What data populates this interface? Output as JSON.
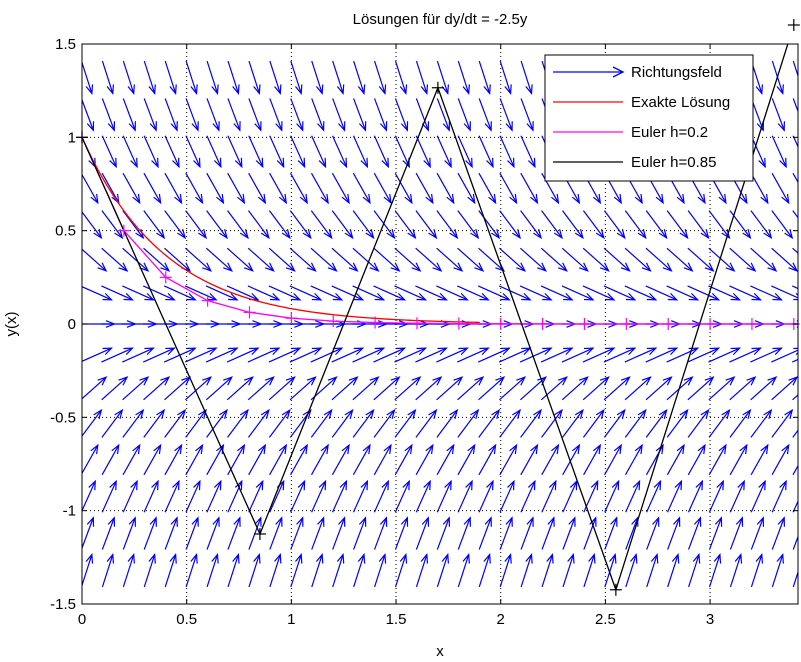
{
  "chart_data": {
    "type": "line",
    "title": "Lösungen für dy/dt = -2.5y",
    "xlabel": "x",
    "ylabel": "y(x)",
    "xlim": [
      0,
      3.42
    ],
    "ylim": [
      -1.5,
      1.5
    ],
    "grid": true,
    "grid_style": "dotted",
    "legend_position": "top-right",
    "x_ticks": [
      0,
      0.5,
      1,
      1.5,
      2,
      2.5,
      3
    ],
    "x_tick_labels": [
      "0",
      "0.5",
      "1",
      "1.5",
      "2",
      "2.5",
      "3"
    ],
    "y_ticks": [
      1.5,
      1,
      0.5,
      0,
      -0.5,
      -1,
      -1.5
    ],
    "y_tick_labels": [
      "1.5",
      "1",
      "0.5",
      "0",
      "-0.5",
      "-1",
      "-1.5"
    ],
    "direction_field": {
      "name": "Richtungsfeld",
      "color": "#0000ff",
      "rate": -2.5,
      "x_grid": [
        0,
        0.1,
        0.2,
        0.3,
        0.4,
        0.5,
        0.6,
        0.7,
        0.8,
        0.9,
        1.0,
        1.1,
        1.2,
        1.3,
        1.4,
        1.5,
        1.6,
        1.7,
        1.8,
        1.9,
        2.0,
        2.1,
        2.2,
        2.3,
        2.4,
        2.5,
        2.6,
        2.7,
        2.8,
        2.9,
        3.0,
        3.1,
        3.2,
        3.3,
        3.4
      ],
      "y_grid": [
        1.4,
        1.2,
        1.0,
        0.8,
        0.6,
        0.4,
        0.2,
        0.0,
        -0.2,
        -0.4,
        -0.6,
        -0.8,
        -1.0,
        -1.2,
        -1.4
      ]
    },
    "series": [
      {
        "name": "Exakte Lösung",
        "color": "#ff0000",
        "kind": "curve",
        "formula": "exp(-2.5x)",
        "x_range": [
          0,
          1.9
        ]
      },
      {
        "name": "Euler h=0.2",
        "color": "#ff00ff",
        "kind": "points",
        "marker": "+",
        "x": [
          0,
          0.2,
          0.4,
          0.6,
          0.8,
          1.0,
          1.2,
          1.4,
          1.6,
          1.8,
          2.0,
          2.2,
          2.4,
          2.6,
          2.8,
          3.0,
          3.2,
          3.4
        ],
        "y": [
          1,
          0.5,
          0.25,
          0.125,
          0.0625,
          0.03125,
          0.0156,
          0.0078,
          0.0039,
          0.002,
          0.001,
          0.0005,
          0.0002,
          0.0001,
          0.0001,
          0,
          0,
          0
        ]
      },
      {
        "name": "Euler h=0.85",
        "color": "#000000",
        "kind": "points",
        "marker": "+",
        "x": [
          0,
          0.85,
          1.7,
          2.55,
          3.4
        ],
        "y": [
          1,
          -1.125,
          1.2656,
          -1.4238,
          1.6018
        ]
      }
    ]
  }
}
